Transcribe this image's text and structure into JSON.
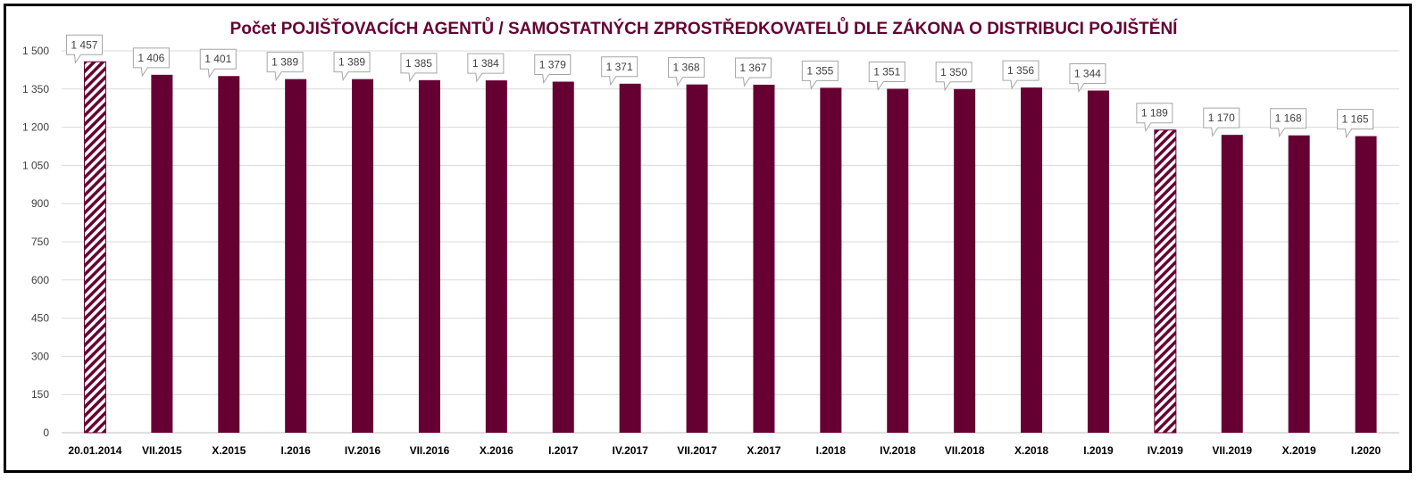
{
  "chart_data": {
    "type": "bar",
    "title": "Počet POJIŠŤOVACÍCH AGENTŮ / SAMOSTATNÝCH ZPROSTŘEDKOVATELŮ DLE ZÁKONA O DISTRIBUCI POJIŠTĚNÍ",
    "xlabel": "",
    "ylabel": "",
    "ylim": [
      0,
      1500
    ],
    "yticks": [
      {
        "value": 0,
        "label": "0"
      },
      {
        "value": 150,
        "label": "150"
      },
      {
        "value": 300,
        "label": "300"
      },
      {
        "value": 450,
        "label": "450"
      },
      {
        "value": 600,
        "label": "600"
      },
      {
        "value": 750,
        "label": "750"
      },
      {
        "value": 900,
        "label": "900"
      },
      {
        "value": 1050,
        "label": "1 050"
      },
      {
        "value": 1200,
        "label": "1 200"
      },
      {
        "value": 1350,
        "label": "1 350"
      },
      {
        "value": 1500,
        "label": "1 500"
      }
    ],
    "grid": true,
    "legend": "none",
    "colors": {
      "bar": "#660033",
      "title": "#660033",
      "grid": "#d9d9d9",
      "axis": "#bfbfbf"
    },
    "categories": [
      "20.01.2014",
      "VII.2015",
      "X.2015",
      "I.2016",
      "IV.2016",
      "VII.2016",
      "X.2016",
      "I.2017",
      "IV.2017",
      "VII.2017",
      "X.2017",
      "I.2018",
      "IV.2018",
      "VII.2018",
      "X.2018",
      "I.2019",
      "IV.2019",
      "VII.2019",
      "X.2019",
      "I.2020"
    ],
    "values": [
      1457,
      1406,
      1401,
      1389,
      1389,
      1385,
      1384,
      1379,
      1371,
      1368,
      1367,
      1355,
      1351,
      1350,
      1356,
      1344,
      1189,
      1170,
      1168,
      1165
    ],
    "labels": [
      "1 457",
      "1 406",
      "1 401",
      "1 389",
      "1 389",
      "1 385",
      "1 384",
      "1 379",
      "1 371",
      "1 368",
      "1 367",
      "1 355",
      "1 351",
      "1 350",
      "1 356",
      "1 344",
      "1 189",
      "1 170",
      "1 168",
      "1 165"
    ],
    "hatched": [
      true,
      false,
      false,
      false,
      false,
      false,
      false,
      false,
      false,
      false,
      false,
      false,
      false,
      false,
      false,
      false,
      true,
      false,
      false,
      false
    ]
  }
}
